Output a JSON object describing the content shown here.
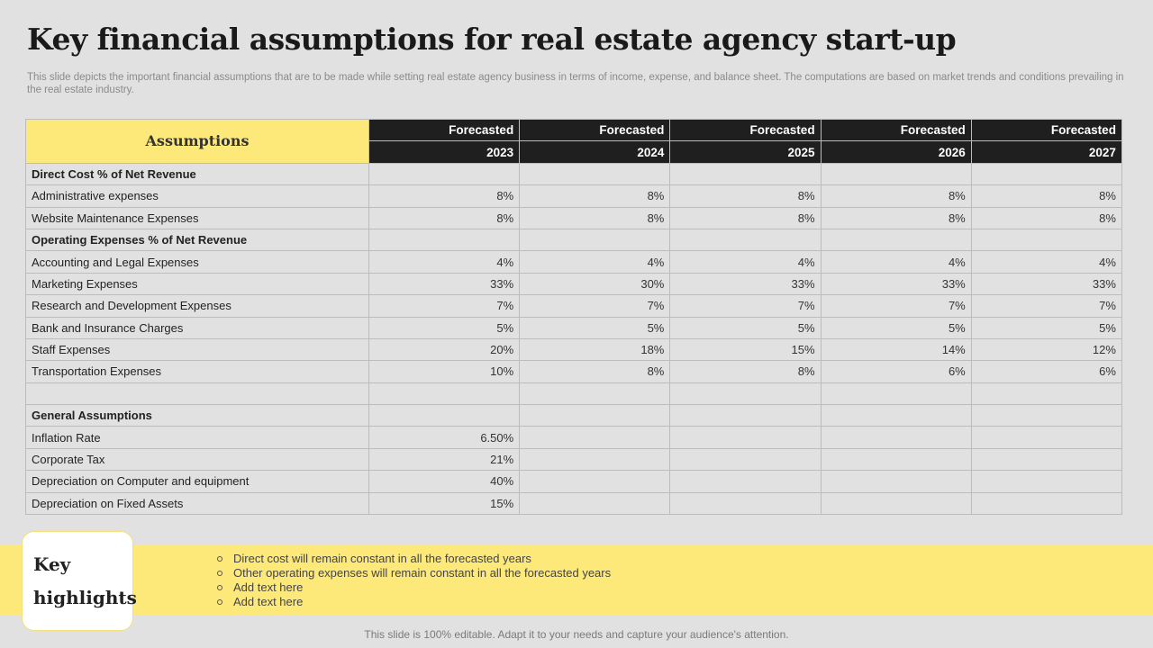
{
  "title": "Key financial assumptions for real estate agency start-up",
  "subtitle": "This slide depicts the important financial assumptions that are to be made while setting real estate agency business in terms of income, expense, and balance sheet. The computations are based on market trends and conditions prevailing in the real estate industry.",
  "table": {
    "header_label": "Assumptions",
    "forecast_label": "Forecasted",
    "years": [
      "2023",
      "2024",
      "2025",
      "2026",
      "2027"
    ],
    "rows": [
      {
        "label": "Direct Cost  % of Net Revenue",
        "section": true,
        "values": [
          "",
          "",
          "",
          "",
          ""
        ]
      },
      {
        "label": "Administrative expenses",
        "section": false,
        "values": [
          "8%",
          "8%",
          "8%",
          "8%",
          "8%"
        ]
      },
      {
        "label": "Website Maintenance Expenses",
        "section": false,
        "values": [
          "8%",
          "8%",
          "8%",
          "8%",
          "8%"
        ]
      },
      {
        "label": "Operating Expenses  % of Net Revenue",
        "section": true,
        "values": [
          "",
          "",
          "",
          "",
          ""
        ]
      },
      {
        "label": "Accounting and Legal Expenses",
        "section": false,
        "values": [
          "4%",
          "4%",
          "4%",
          "4%",
          "4%"
        ]
      },
      {
        "label": "Marketing Expenses",
        "section": false,
        "values": [
          "33%",
          "30%",
          "33%",
          "33%",
          "33%"
        ]
      },
      {
        "label": "Research and Development  Expenses",
        "section": false,
        "values": [
          "7%",
          "7%",
          "7%",
          "7%",
          "7%"
        ]
      },
      {
        "label": "Bank and Insurance Charges",
        "section": false,
        "values": [
          "5%",
          "5%",
          "5%",
          "5%",
          "5%"
        ]
      },
      {
        "label": "Staff Expenses",
        "section": false,
        "values": [
          "20%",
          "18%",
          "15%",
          "14%",
          "12%"
        ]
      },
      {
        "label": "Transportation  Expenses",
        "section": false,
        "values": [
          "10%",
          "8%",
          "8%",
          "6%",
          "6%"
        ]
      },
      {
        "label": "",
        "section": false,
        "values": [
          "",
          "",
          "",
          "",
          ""
        ]
      },
      {
        "label": "General Assumptions",
        "section": true,
        "values": [
          "",
          "",
          "",
          "",
          ""
        ]
      },
      {
        "label": "Inflation  Rate",
        "section": false,
        "values": [
          "6.50%",
          "",
          "",
          "",
          ""
        ]
      },
      {
        "label": "Corporate  Tax",
        "section": false,
        "values": [
          "21%",
          "",
          "",
          "",
          ""
        ]
      },
      {
        "label": "Depreciation  on Computer  and equipment",
        "section": false,
        "values": [
          "40%",
          "",
          "",
          "",
          ""
        ]
      },
      {
        "label": "Depreciation  on Fixed Assets",
        "section": false,
        "values": [
          "15%",
          "",
          "",
          "",
          ""
        ]
      }
    ]
  },
  "highlights": {
    "heading_line1": "Key",
    "heading_line2": "highlights",
    "items": [
      "Direct cost will remain constant in all the forecasted years",
      "Other operating expenses will remain constant in all the forecasted  years",
      "Add text here",
      "Add text here"
    ]
  },
  "footer": "This slide is 100% editable. Adapt it to your needs and capture your audience's attention.",
  "colors": {
    "background": "#e1e1e1",
    "accent_yellow": "#fde97a",
    "header_dark": "#1f1f1f"
  }
}
